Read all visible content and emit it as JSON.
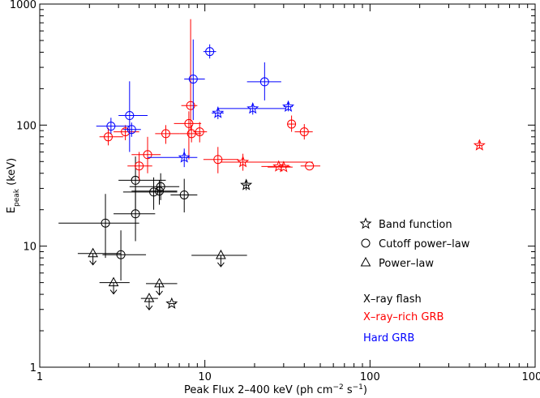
{
  "chart_data": {
    "type": "scatter",
    "x_scale": "log",
    "y_scale": "log",
    "xlim": [
      1,
      1000
    ],
    "ylim": [
      1,
      1000
    ],
    "x_ticks": [
      "1",
      "10",
      "100",
      "1000"
    ],
    "y_ticks": [
      "1",
      "10",
      "100",
      "1000"
    ],
    "xlabel": {
      "main": "Peak Flux 2–400 keV (ph cm",
      "exp1": "−2",
      "mid": " s",
      "exp2": "−1",
      "end": ")"
    },
    "ylabel": {
      "main": "E",
      "sub": "peak",
      "end": " (keV)"
    },
    "colors": {
      "xrf": "#000000",
      "xrr": "#ff0000",
      "hard": "#0000ff"
    },
    "legend_markers": [
      {
        "marker": "star",
        "label": "Band function"
      },
      {
        "marker": "circle",
        "label": "Cutoff power–law"
      },
      {
        "marker": "triangle",
        "label": "Power–law"
      }
    ],
    "legend_classes": [
      {
        "name": "X–ray flash",
        "color": "#000000"
      },
      {
        "name": "X–ray–rich GRB",
        "color": "#ff0000"
      },
      {
        "name": "Hard GRB",
        "color": "#0000ff"
      }
    ],
    "series": [
      {
        "name": "X–ray flash",
        "color": "#000000",
        "points": [
          {
            "x": 2.5,
            "y": 15.5,
            "m": "circle",
            "xlo": 1.3,
            "xhi": 4.0,
            "ylo": 8,
            "yhi": 27
          },
          {
            "x": 3.8,
            "y": 35,
            "m": "circle",
            "xlo": 3.0,
            "xhi": 5.8,
            "ylo": 20,
            "yhi": 55
          },
          {
            "x": 3.8,
            "y": 18.5,
            "m": "circle",
            "xlo": 2.8,
            "xhi": 5.0,
            "ylo": 11,
            "yhi": 30
          },
          {
            "x": 3.1,
            "y": 8.5,
            "m": "circle",
            "xlo": 2.4,
            "xhi": 4.4,
            "ylo": 5.2,
            "yhi": 13.5
          },
          {
            "x": 4.9,
            "y": 28,
            "m": "circle",
            "xlo": 3.2,
            "xhi": 6.8,
            "ylo": 20,
            "yhi": 37
          },
          {
            "x": 5.3,
            "y": 28.5,
            "m": "circle",
            "xlo": 3.6,
            "xhi": 6.8,
            "ylo": 22,
            "yhi": 35
          },
          {
            "x": 5.4,
            "y": 31,
            "m": "circle",
            "xlo": 3.5,
            "xhi": 7.0,
            "ylo": 24,
            "yhi": 40
          },
          {
            "x": 7.5,
            "y": 26.5,
            "m": "circle",
            "xlo": 6.2,
            "xhi": 9.0,
            "ylo": 19,
            "yhi": 36
          },
          {
            "x": 17.8,
            "y": 32,
            "m": "star",
            "xlo": 17.2,
            "xhi": 18.4,
            "ylo": 29,
            "yhi": 35.5
          },
          {
            "x": 6.3,
            "y": 3.35,
            "m": "star",
            "xlo": 6.0,
            "xhi": 6.7
          },
          {
            "x": 2.1,
            "y": 8.7,
            "m": "triangle",
            "xlo": 1.7,
            "xhi": 3.1,
            "upper": true
          },
          {
            "x": 2.8,
            "y": 5.0,
            "m": "triangle",
            "xlo": 2.3,
            "xhi": 3.5,
            "upper": true
          },
          {
            "x": 4.6,
            "y": 3.7,
            "m": "triangle",
            "xlo": 4.1,
            "xhi": 5.2,
            "upper": true
          },
          {
            "x": 5.3,
            "y": 4.9,
            "m": "triangle",
            "xlo": 4.4,
            "xhi": 6.8,
            "upper": true
          },
          {
            "x": 12.5,
            "y": 8.4,
            "m": "triangle",
            "xlo": 8.3,
            "xhi": 18.0,
            "upper": true
          }
        ]
      },
      {
        "name": "X–ray–rich GRB",
        "color": "#ff0000",
        "points": [
          {
            "x": 2.6,
            "y": 80,
            "m": "circle",
            "xlo": 2.3,
            "xhi": 3.2,
            "ylo": 68,
            "yhi": 95
          },
          {
            "x": 3.3,
            "y": 88,
            "m": "circle",
            "xlo": 2.8,
            "xhi": 4.0,
            "ylo": 75,
            "yhi": 100
          },
          {
            "x": 4.0,
            "y": 46,
            "m": "circle",
            "xlo": 3.4,
            "xhi": 4.8,
            "ylo": 35,
            "yhi": 60
          },
          {
            "x": 4.5,
            "y": 57,
            "m": "circle",
            "xlo": 3.6,
            "xhi": 5.4,
            "ylo": 40,
            "yhi": 80
          },
          {
            "x": 5.8,
            "y": 85,
            "m": "circle",
            "xlo": 5.0,
            "xhi": 7.0,
            "ylo": 70,
            "yhi": 100
          },
          {
            "x": 8.0,
            "y": 103,
            "m": "circle",
            "xlo": 6.5,
            "xhi": 9.5,
            "ylo": 52,
            "yhi": 130
          },
          {
            "x": 8.2,
            "y": 145,
            "m": "circle",
            "xlo": 7.2,
            "xhi": 9.0,
            "ylo": 90,
            "yhi": 750
          },
          {
            "x": 8.3,
            "y": 85,
            "m": "circle",
            "xlo": 7.0,
            "xhi": 9.5,
            "ylo": 72,
            "yhi": 100
          },
          {
            "x": 9.3,
            "y": 88,
            "m": "circle",
            "xlo": 8.5,
            "xhi": 10.3,
            "ylo": 72,
            "yhi": 106
          },
          {
            "x": 12.0,
            "y": 52,
            "m": "circle",
            "xlo": 9.8,
            "xhi": 16.0,
            "ylo": 40,
            "yhi": 66
          },
          {
            "x": 33.5,
            "y": 102,
            "m": "circle",
            "xlo": 31.5,
            "xhi": 35.5,
            "ylo": 88,
            "yhi": 120
          },
          {
            "x": 40.0,
            "y": 88,
            "m": "circle",
            "xlo": 35.0,
            "xhi": 45.0,
            "ylo": 76,
            "yhi": 102
          },
          {
            "x": 43.0,
            "y": 46,
            "m": "circle",
            "xlo": 38.0,
            "xhi": 50.0
          },
          {
            "x": 17.0,
            "y": 49.5,
            "m": "star",
            "xlo": 12.5,
            "xhi": 45.0,
            "ylo": 42,
            "yhi": 58
          },
          {
            "x": 28.0,
            "y": 45.5,
            "m": "star",
            "xlo": 22.0,
            "xhi": 33.0
          },
          {
            "x": 30.0,
            "y": 45,
            "m": "star",
            "xlo": 24.0,
            "xhi": 34.0
          },
          {
            "x": 460.0,
            "y": 68,
            "m": "star",
            "xlo": 445.0,
            "xhi": 475.0,
            "ylo": 64,
            "yhi": 73
          }
        ]
      },
      {
        "name": "Hard GRB",
        "color": "#0000ff",
        "points": [
          {
            "x": 2.7,
            "y": 98,
            "m": "circle",
            "xlo": 2.2,
            "xhi": 3.5,
            "ylo": 85,
            "yhi": 115
          },
          {
            "x": 3.5,
            "y": 120,
            "m": "circle",
            "xlo": 3.0,
            "xhi": 4.5,
            "ylo": 60,
            "yhi": 230
          },
          {
            "x": 3.6,
            "y": 92,
            "m": "circle",
            "xlo": 3.2,
            "xhi": 4.1,
            "ylo": 80,
            "yhi": 105
          },
          {
            "x": 8.5,
            "y": 240,
            "m": "circle",
            "xlo": 7.5,
            "xhi": 10.0,
            "ylo": 110,
            "yhi": 510
          },
          {
            "x": 10.7,
            "y": 405,
            "m": "circle",
            "xlo": 9.8,
            "xhi": 11.7,
            "ylo": 355,
            "yhi": 465
          },
          {
            "x": 23.0,
            "y": 228,
            "m": "circle",
            "xlo": 18.0,
            "xhi": 29.0,
            "ylo": 160,
            "yhi": 330
          },
          {
            "x": 7.5,
            "y": 54,
            "m": "star",
            "xlo": 4.5,
            "xhi": 9.0,
            "ylo": 45,
            "yhi": 64
          },
          {
            "x": 12.0,
            "y": 126,
            "m": "star",
            "xlo": 11.0,
            "xhi": 13.0,
            "ylo": 112,
            "yhi": 142
          },
          {
            "x": 19.5,
            "y": 137,
            "m": "star",
            "xlo": 12.0,
            "xhi": 31.0,
            "ylo": 122,
            "yhi": 152
          },
          {
            "x": 32.0,
            "y": 142,
            "m": "star",
            "xlo": 30.0,
            "xhi": 34.0,
            "ylo": 130,
            "yhi": 155
          }
        ]
      }
    ]
  }
}
